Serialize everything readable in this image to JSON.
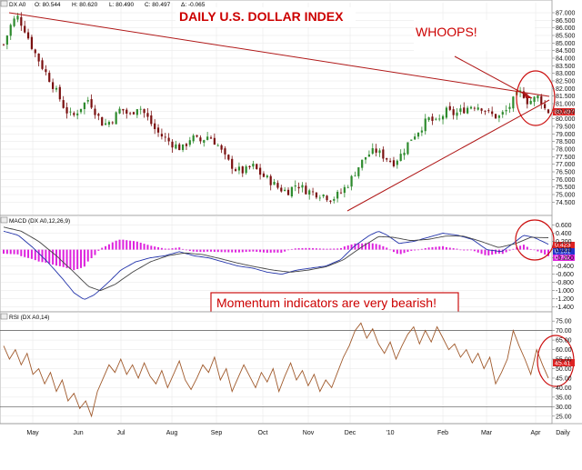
{
  "header": {
    "price": {
      "symbol": "DX A0",
      "open": "O: 80.544",
      "high": "H: 80.620",
      "low": "L: 80.490",
      "close": "C: 80.497",
      "change": "Δ: -0.065"
    },
    "macd": "MACD (DX A0,12,26,9)",
    "rsi": "RSI (DX A0,14)"
  },
  "annotations": {
    "title": "DAILY U.S. DOLLAR INDEX",
    "whoops": "WHOOPS!",
    "momentum": "Momentum indicators are very bearish!"
  },
  "colors": {
    "candle_up": "#2e8b2e",
    "candle_down": "#7a1010",
    "trendline": "#b01818",
    "macd_hist": "#dd22dd",
    "macd_line": "#2233aa",
    "signal_line": "#444444",
    "rsi_line": "#a05a2c",
    "price_tag": "#dd2222",
    "macd_tag_1": "#dd2222",
    "macd_tag_2": "#2233cc",
    "macd_tag_3": "#dd22dd",
    "rsi_tag": "#dd2222"
  },
  "chart_data": [
    {
      "type": "candlestick",
      "title": "DAILY U.S. DOLLAR INDEX",
      "ylim": [
        73.8,
        87.3
      ],
      "y_ticks": [
        "87.000",
        "86.500",
        "86.000",
        "85.500",
        "85.000",
        "84.500",
        "84.000",
        "83.500",
        "83.000",
        "82.500",
        "82.000",
        "81.500",
        "81.000",
        "80.500",
        "80.000",
        "79.500",
        "79.000",
        "78.500",
        "78.000",
        "77.500",
        "77.000",
        "76.500",
        "76.000",
        "75.500",
        "75.000",
        "74.500"
      ],
      "x_labels": [
        "May",
        "Jun",
        "Jul",
        "Aug",
        "Sep",
        "Oct",
        "Nov",
        "Dec",
        "'10",
        "Feb",
        "Mar",
        "Apr",
        "Daily"
      ],
      "last_value": "80.497",
      "close_path": [
        [
          0,
          84.9
        ],
        [
          5,
          86.2
        ],
        [
          9,
          86.8
        ],
        [
          14,
          86.0
        ],
        [
          20,
          84.6
        ],
        [
          26,
          83.5
        ],
        [
          32,
          82.5
        ],
        [
          37,
          81.6
        ],
        [
          42,
          80.6
        ],
        [
          47,
          80.1
        ],
        [
          52,
          80.7
        ],
        [
          58,
          81.3
        ],
        [
          63,
          80.4
        ],
        [
          68,
          79.6
        ],
        [
          74,
          79.9
        ],
        [
          80,
          80.7
        ],
        [
          86,
          80.2
        ],
        [
          92,
          80.9
        ],
        [
          98,
          80.1
        ],
        [
          104,
          79.2
        ],
        [
          110,
          78.7
        ],
        [
          116,
          78.3
        ],
        [
          122,
          78.0
        ],
        [
          128,
          78.8
        ],
        [
          134,
          78.5
        ],
        [
          140,
          78.9
        ],
        [
          146,
          78.3
        ],
        [
          152,
          77.3
        ],
        [
          158,
          76.7
        ],
        [
          164,
          76.5
        ],
        [
          170,
          76.9
        ],
        [
          176,
          76.3
        ],
        [
          182,
          75.9
        ],
        [
          188,
          75.4
        ],
        [
          194,
          75.2
        ],
        [
          200,
          75.7
        ],
        [
          206,
          75.3
        ],
        [
          212,
          75.1
        ],
        [
          218,
          75.0
        ],
        [
          224,
          74.7
        ],
        [
          230,
          75.1
        ],
        [
          236,
          75.8
        ],
        [
          242,
          76.8
        ],
        [
          248,
          77.6
        ],
        [
          254,
          77.9
        ],
        [
          260,
          77.5
        ],
        [
          266,
          77.1
        ],
        [
          272,
          77.7
        ],
        [
          278,
          78.7
        ],
        [
          284,
          79.3
        ],
        [
          290,
          80.0
        ],
        [
          296,
          79.7
        ],
        [
          302,
          80.5
        ],
        [
          308,
          80.3
        ],
        [
          314,
          80.6
        ],
        [
          320,
          80.9
        ],
        [
          326,
          80.8
        ],
        [
          332,
          80.3
        ],
        [
          338,
          80.1
        ],
        [
          344,
          80.6
        ],
        [
          350,
          81.5
        ],
        [
          354,
          81.8
        ],
        [
          358,
          81.1
        ],
        [
          362,
          81.3
        ],
        [
          366,
          81.5
        ],
        [
          369,
          80.7
        ],
        [
          372,
          80.5
        ]
      ],
      "candle_seed": 7
    },
    {
      "type": "macd",
      "title": "MACD (DX A0,12,26,9)",
      "ylim": [
        -1.45,
        0.7
      ],
      "y_ticks": [
        "0.600",
        "0.400",
        "0.200",
        "0.000",
        "-0.200",
        "-0.400",
        "-0.600",
        "-0.800",
        "-1.000",
        "-1.200",
        "-1.400"
      ],
      "tag_values": [
        "0.423",
        "0.131",
        "0.292"
      ],
      "macd_path": [
        [
          0,
          0.45
        ],
        [
          10,
          0.35
        ],
        [
          20,
          0.05
        ],
        [
          30,
          -0.3
        ],
        [
          40,
          -0.7
        ],
        [
          48,
          -1.05
        ],
        [
          55,
          -1.22
        ],
        [
          62,
          -1.1
        ],
        [
          70,
          -0.85
        ],
        [
          80,
          -0.5
        ],
        [
          90,
          -0.3
        ],
        [
          100,
          -0.2
        ],
        [
          110,
          -0.15
        ],
        [
          120,
          -0.05
        ],
        [
          130,
          -0.15
        ],
        [
          140,
          -0.2
        ],
        [
          150,
          -0.3
        ],
        [
          160,
          -0.4
        ],
        [
          170,
          -0.45
        ],
        [
          180,
          -0.55
        ],
        [
          190,
          -0.6
        ],
        [
          200,
          -0.5
        ],
        [
          210,
          -0.45
        ],
        [
          220,
          -0.4
        ],
        [
          230,
          -0.25
        ],
        [
          240,
          0.1
        ],
        [
          250,
          0.35
        ],
        [
          256,
          0.45
        ],
        [
          262,
          0.35
        ],
        [
          270,
          0.15
        ],
        [
          280,
          0.2
        ],
        [
          290,
          0.3
        ],
        [
          300,
          0.4
        ],
        [
          310,
          0.35
        ],
        [
          320,
          0.25
        ],
        [
          330,
          0.0
        ],
        [
          340,
          -0.05
        ],
        [
          348,
          0.15
        ],
        [
          355,
          0.35
        ],
        [
          362,
          0.3
        ],
        [
          368,
          0.2
        ],
        [
          372,
          0.13
        ]
      ],
      "signal_path": [
        [
          0,
          0.55
        ],
        [
          12,
          0.45
        ],
        [
          24,
          0.2
        ],
        [
          36,
          -0.15
        ],
        [
          48,
          -0.55
        ],
        [
          58,
          -0.9
        ],
        [
          66,
          -1.0
        ],
        [
          76,
          -0.85
        ],
        [
          88,
          -0.55
        ],
        [
          100,
          -0.3
        ],
        [
          112,
          -0.15
        ],
        [
          124,
          -0.08
        ],
        [
          136,
          -0.12
        ],
        [
          148,
          -0.22
        ],
        [
          160,
          -0.33
        ],
        [
          172,
          -0.42
        ],
        [
          184,
          -0.5
        ],
        [
          196,
          -0.55
        ],
        [
          208,
          -0.5
        ],
        [
          220,
          -0.42
        ],
        [
          232,
          -0.25
        ],
        [
          244,
          0.05
        ],
        [
          256,
          0.32
        ],
        [
          266,
          0.3
        ],
        [
          278,
          0.22
        ],
        [
          290,
          0.25
        ],
        [
          302,
          0.33
        ],
        [
          314,
          0.33
        ],
        [
          326,
          0.2
        ],
        [
          338,
          0.05
        ],
        [
          350,
          0.15
        ],
        [
          360,
          0.3
        ],
        [
          372,
          0.29
        ]
      ]
    },
    {
      "type": "rsi",
      "title": "RSI (DX A0,14)",
      "ylim": [
        22.5,
        77
      ],
      "y_ticks": [
        "75.00",
        "70.00",
        "65.00",
        "60.00",
        "55.00",
        "50.00",
        "45.00",
        "40.00",
        "35.00",
        "30.00",
        "25.00"
      ],
      "ref_lines": [
        70,
        30
      ],
      "last_value": "45.41",
      "path": [
        [
          0,
          62
        ],
        [
          4,
          55
        ],
        [
          8,
          60
        ],
        [
          12,
          52
        ],
        [
          16,
          58
        ],
        [
          20,
          47
        ],
        [
          24,
          50
        ],
        [
          28,
          42
        ],
        [
          32,
          48
        ],
        [
          36,
          38
        ],
        [
          40,
          44
        ],
        [
          44,
          33
        ],
        [
          48,
          37
        ],
        [
          52,
          29
        ],
        [
          56,
          33
        ],
        [
          60,
          25
        ],
        [
          64,
          38
        ],
        [
          68,
          45
        ],
        [
          72,
          52
        ],
        [
          76,
          48
        ],
        [
          80,
          55
        ],
        [
          84,
          47
        ],
        [
          88,
          52
        ],
        [
          92,
          45
        ],
        [
          96,
          53
        ],
        [
          100,
          46
        ],
        [
          104,
          42
        ],
        [
          108,
          49
        ],
        [
          112,
          40
        ],
        [
          116,
          47
        ],
        [
          120,
          54
        ],
        [
          124,
          44
        ],
        [
          128,
          39
        ],
        [
          132,
          45
        ],
        [
          136,
          52
        ],
        [
          140,
          48
        ],
        [
          144,
          56
        ],
        [
          148,
          44
        ],
        [
          152,
          50
        ],
        [
          156,
          38
        ],
        [
          160,
          45
        ],
        [
          164,
          52
        ],
        [
          168,
          46
        ],
        [
          172,
          40
        ],
        [
          176,
          48
        ],
        [
          180,
          43
        ],
        [
          184,
          50
        ],
        [
          188,
          38
        ],
        [
          192,
          46
        ],
        [
          196,
          53
        ],
        [
          200,
          44
        ],
        [
          204,
          49
        ],
        [
          208,
          41
        ],
        [
          212,
          47
        ],
        [
          216,
          38
        ],
        [
          220,
          44
        ],
        [
          224,
          40
        ],
        [
          228,
          48
        ],
        [
          232,
          56
        ],
        [
          236,
          62
        ],
        [
          240,
          70
        ],
        [
          244,
          74
        ],
        [
          248,
          66
        ],
        [
          252,
          71
        ],
        [
          256,
          63
        ],
        [
          260,
          58
        ],
        [
          264,
          64
        ],
        [
          268,
          55
        ],
        [
          272,
          62
        ],
        [
          276,
          68
        ],
        [
          280,
          72
        ],
        [
          284,
          63
        ],
        [
          288,
          70
        ],
        [
          292,
          64
        ],
        [
          296,
          72
        ],
        [
          300,
          66
        ],
        [
          304,
          60
        ],
        [
          308,
          63
        ],
        [
          312,
          56
        ],
        [
          316,
          60
        ],
        [
          320,
          53
        ],
        [
          324,
          58
        ],
        [
          328,
          50
        ],
        [
          332,
          56
        ],
        [
          336,
          42
        ],
        [
          340,
          48
        ],
        [
          344,
          55
        ],
        [
          348,
          70
        ],
        [
          352,
          62
        ],
        [
          356,
          55
        ],
        [
          360,
          47
        ],
        [
          364,
          60
        ],
        [
          368,
          52
        ],
        [
          372,
          45
        ]
      ]
    }
  ]
}
